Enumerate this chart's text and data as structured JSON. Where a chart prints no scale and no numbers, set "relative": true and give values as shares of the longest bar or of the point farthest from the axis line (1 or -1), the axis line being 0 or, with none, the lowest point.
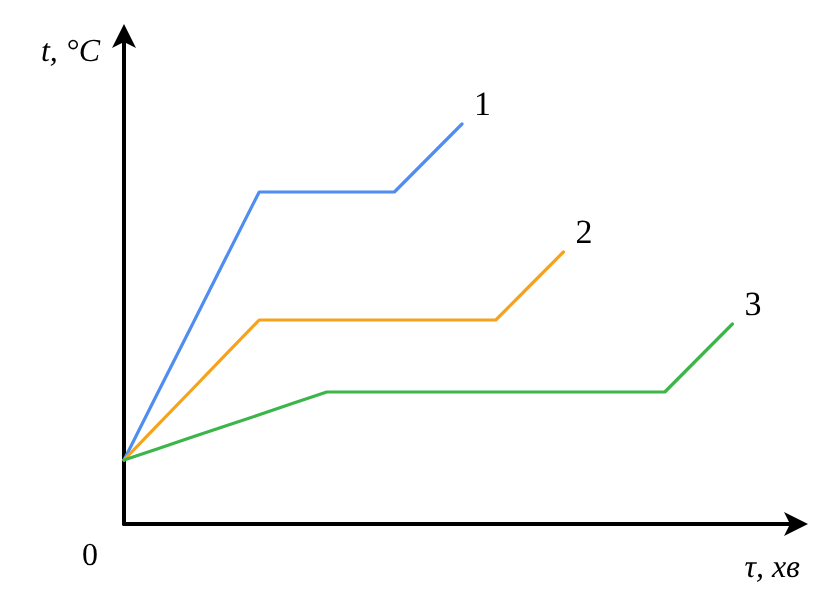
{
  "chart_data": {
    "type": "line",
    "relative": true,
    "xlabel": "τ, хв",
    "ylabel": "t, °C",
    "annotations": [
      "0"
    ],
    "grid": false,
    "legend": false,
    "marker": "none",
    "line_style": "solid",
    "categories": [
      null,
      null,
      null,
      null,
      null,
      null,
      null,
      null,
      null,
      null,
      null,
      null,
      null,
      null,
      null,
      null,
      null,
      null,
      null,
      null,
      null
    ],
    "series": [
      {
        "name": "1",
        "color": "#4f8ef0",
        "values": [
          0.16,
          0.328,
          0.495,
          0.663,
          0.83,
          0.83,
          0.83,
          0.83,
          0.83,
          0.915,
          1,
          null,
          null,
          null,
          null,
          null,
          null,
          null,
          null,
          null,
          null
        ]
      },
      {
        "name": "2",
        "color": "#f7a21b",
        "values": [
          0.16,
          0.248,
          0.335,
          0.423,
          0.51,
          0.51,
          0.51,
          0.51,
          0.51,
          0.51,
          0.51,
          0.51,
          0.595,
          0.68,
          null,
          null,
          null,
          null,
          null,
          null,
          null
        ]
      },
      {
        "name": "3",
        "color": "#3cb54a",
        "values": [
          0.16,
          0.188,
          0.217,
          0.245,
          0.273,
          0.302,
          0.33,
          0.33,
          0.33,
          0.33,
          0.33,
          0.33,
          0.33,
          0.33,
          0.33,
          0.33,
          0.33,
          0.415,
          0.5,
          null,
          null
        ]
      }
    ]
  }
}
